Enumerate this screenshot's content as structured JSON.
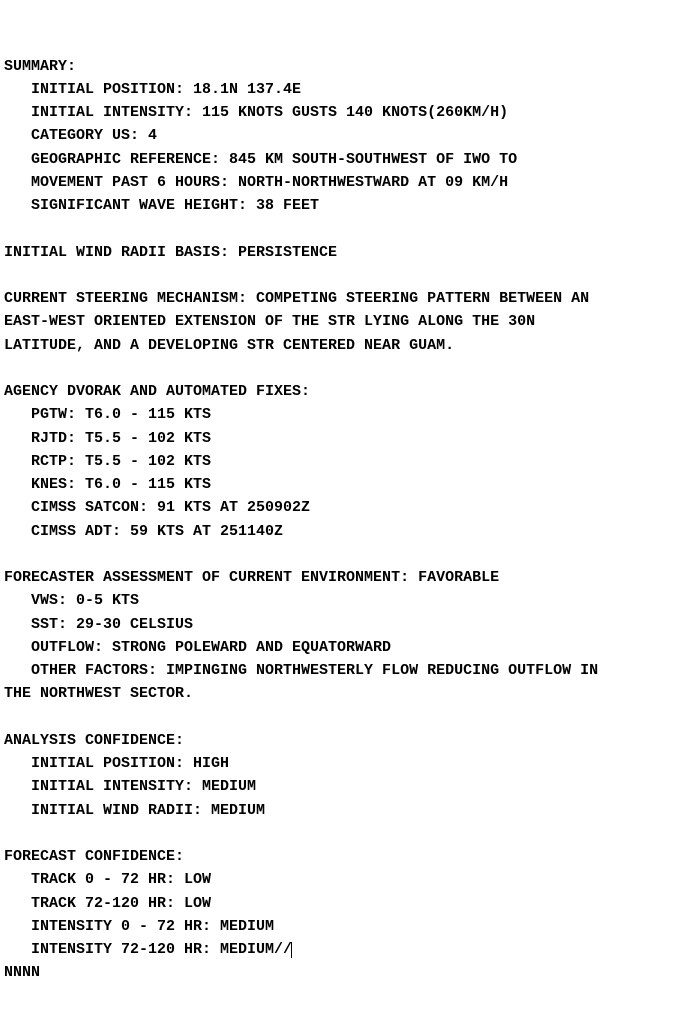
{
  "summary": {
    "header": "SUMMARY:",
    "initial_position": "   INITIAL POSITION: 18.1N 137.4E",
    "initial_intensity": "   INITIAL INTENSITY: 115 KNOTS GUSTS 140 KNOTS(260KM/H)",
    "category_us": "   CATEGORY US: 4",
    "geo_ref": "   GEOGRAPHIC REFERENCE: 845 KM SOUTH-SOUTHWEST OF IWO TO",
    "movement": "   MOVEMENT PAST 6 HOURS: NORTH-NORTHWESTWARD AT 09 KM/H",
    "swh": "   SIGNIFICANT WAVE HEIGHT: 38 FEET"
  },
  "wind_radii_basis": "INITIAL WIND RADII BASIS: PERSISTENCE",
  "steering": {
    "l1": "CURRENT STEERING MECHANISM: COMPETING STEERING PATTERN BETWEEN AN",
    "l2": "EAST-WEST ORIENTED EXTENSION OF THE STR LYING ALONG THE 30N",
    "l3": "LATITUDE, AND A DEVELOPING STR CENTERED NEAR GUAM."
  },
  "dvorak": {
    "header": "AGENCY DVORAK AND AUTOMATED FIXES:",
    "pgtw": "   PGTW: T6.0 - 115 KTS",
    "rjtd": "   RJTD: T5.5 - 102 KTS",
    "rctp": "   RCTP: T5.5 - 102 KTS",
    "knes": "   KNES: T6.0 - 115 KTS",
    "satcon": "   CIMSS SATCON: 91 KTS AT 250902Z",
    "adt": "   CIMSS ADT: 59 KTS AT 251140Z"
  },
  "environment": {
    "header": "FORECASTER ASSESSMENT OF CURRENT ENVIRONMENT: FAVORABLE",
    "vws": "   VWS: 0-5 KTS",
    "sst": "   SST: 29-30 CELSIUS",
    "outflow": "   OUTFLOW: STRONG POLEWARD AND EQUATORWARD",
    "other1": "   OTHER FACTORS: IMPINGING NORTHWESTERLY FLOW REDUCING OUTFLOW IN",
    "other2": "THE NORTHWEST SECTOR."
  },
  "analysis": {
    "header": "ANALYSIS CONFIDENCE:",
    "pos": "   INITIAL POSITION: HIGH",
    "intensity": "   INITIAL INTENSITY: MEDIUM",
    "radii": "   INITIAL WIND RADII: MEDIUM"
  },
  "forecast": {
    "header": "FORECAST CONFIDENCE:",
    "track1": "   TRACK 0 - 72 HR: LOW",
    "track2": "   TRACK 72-120 HR: LOW",
    "int1": "   INTENSITY 0 - 72 HR: MEDIUM",
    "int2": "   INTENSITY 72-120 HR: MEDIUM//"
  },
  "terminator": "NNNN"
}
